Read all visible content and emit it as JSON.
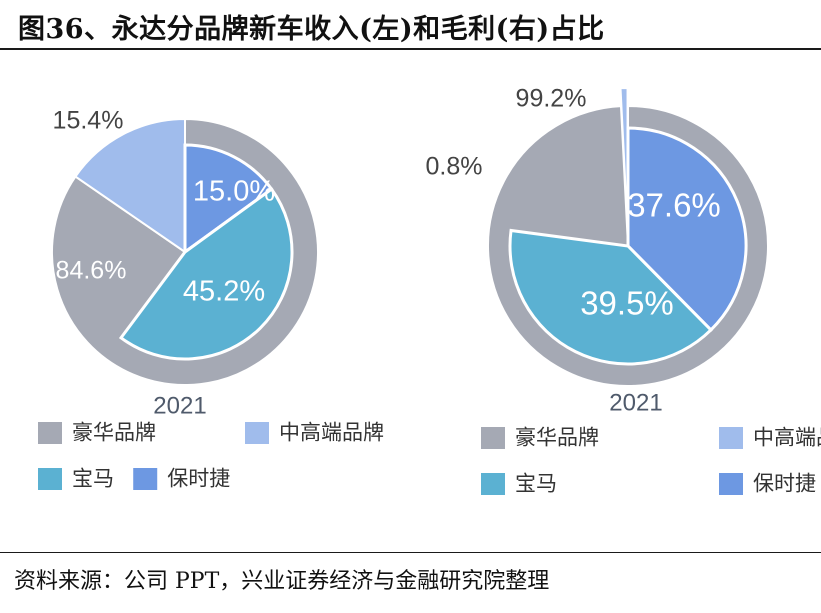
{
  "title": "图36、永达分品牌新车收入(左)和毛利(右)占比",
  "source": "资料来源：公司 PPT，兴业证券经济与金融研究院整理",
  "colors": {
    "luxury": "#A5A9B4",
    "mid_high": "#A0BCEC",
    "bmw": "#5BB1D2",
    "porsche": "#6D98E2"
  },
  "chart_data": [
    {
      "type": "pie",
      "title": "",
      "xlabel": "2021",
      "outer_ring": [
        {
          "name": "豪华品牌",
          "value": 84.6,
          "label": "84.6%"
        },
        {
          "name": "中高端品牌",
          "value": 15.4,
          "label": "15.4%"
        }
      ],
      "inner_breakdown": [
        {
          "name": "保时捷",
          "value": 15.0,
          "label": "15.0%"
        },
        {
          "name": "宝马",
          "value": 45.2,
          "label": "45.2%"
        }
      ],
      "legend": [
        "豪华品牌",
        "中高端品牌",
        "宝马",
        "保时捷"
      ],
      "legend_placement": "bottom"
    },
    {
      "type": "pie",
      "title": "",
      "xlabel": "2021",
      "outer_ring": [
        {
          "name": "豪华品牌",
          "value": 99.2,
          "label": "99.2%"
        },
        {
          "name": "中高端品牌",
          "value": 0.8,
          "label": "0.8%"
        }
      ],
      "inner_breakdown": [
        {
          "name": "保时捷",
          "value": 37.6,
          "label": "37.6%"
        },
        {
          "name": "宝马",
          "value": 39.5,
          "label": "39.5%"
        }
      ],
      "legend": [
        "豪华品牌",
        "中高端品牌",
        "宝马",
        "保时捷"
      ],
      "legend_placement": "bottom"
    }
  ]
}
